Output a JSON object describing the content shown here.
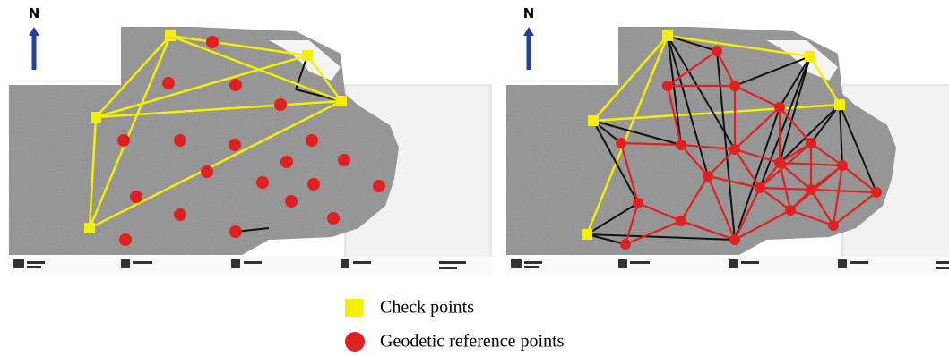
{
  "panels": [
    {
      "north_label": "N"
    },
    {
      "north_label": "N"
    }
  ],
  "legend": {
    "items": [
      {
        "label": "Check points"
      },
      {
        "label": "Geodetic reference points"
      }
    ]
  }
}
